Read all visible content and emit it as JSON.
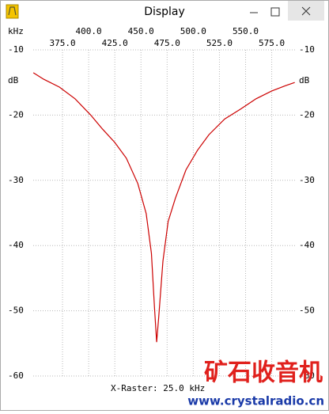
{
  "window": {
    "title": "Display"
  },
  "watermark": {
    "title": "矿石收音机",
    "url": "www.crystalradio.cn"
  },
  "chart_data": {
    "type": "line",
    "x_label": "kHz",
    "y_label": "dB",
    "annotation": "X-Raster: 25.0 kHz",
    "color": "#cc0000",
    "grid": true,
    "x": [
      347.1,
      357,
      372,
      387,
      402,
      413,
      425,
      436,
      447,
      455,
      460,
      463,
      465,
      467,
      471,
      476,
      483,
      493,
      504,
      515,
      530,
      545,
      560,
      575,
      588,
      597
    ],
    "values": [
      -13.5,
      -14.5,
      -15.7,
      -17.5,
      -20.0,
      -22.1,
      -24.2,
      -26.6,
      -30.5,
      -35.1,
      -41.2,
      -49.7,
      -54.8,
      -50.9,
      -42.4,
      -36.3,
      -32.7,
      -28.4,
      -25.4,
      -23.0,
      -20.6,
      -19.1,
      -17.5,
      -16.3,
      -15.5,
      -15.0
    ],
    "xlim": [
      347,
      598
    ],
    "xticks": [
      {
        "value": 375,
        "label": "375.0"
      },
      {
        "value": 400,
        "label": "400.0"
      },
      {
        "value": 425,
        "label": "425.0"
      },
      {
        "value": 450,
        "label": "450.0"
      },
      {
        "value": 475,
        "label": "475.0"
      },
      {
        "value": 500,
        "label": "500.0"
      },
      {
        "value": 525,
        "label": "525.0"
      },
      {
        "value": 550,
        "label": "550.0"
      },
      {
        "value": 575,
        "label": "575.0"
      }
    ],
    "ylim": [
      -60,
      -10
    ],
    "yticks": [
      -10,
      -20,
      -30,
      -40,
      -50,
      -60
    ]
  }
}
